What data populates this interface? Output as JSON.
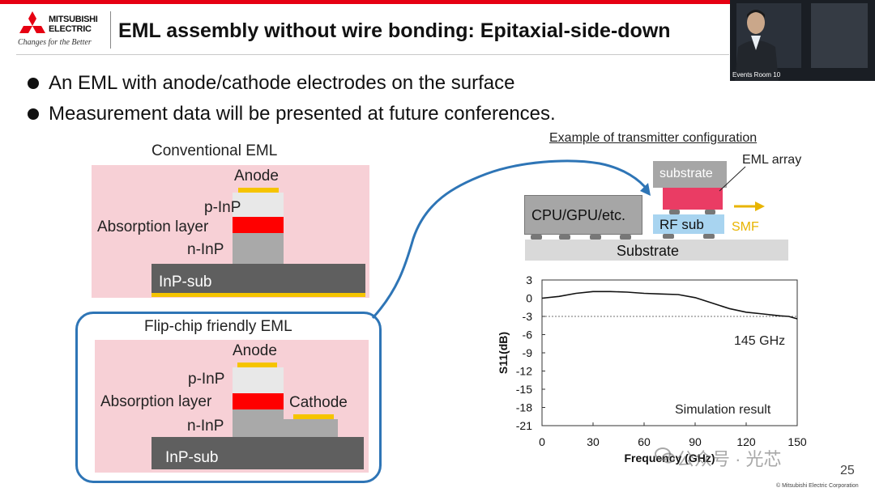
{
  "logo": {
    "brand_line1": "MITSUBISHI",
    "brand_line2": "ELECTRIC",
    "tagline": "Changes for the Better"
  },
  "title": "EML assembly without wire bonding: Epitaxial-side-down",
  "video": {
    "caption": "Events Room 10"
  },
  "bullets": [
    "An EML with anode/cathode electrodes on the surface",
    "Measurement data will be presented at future conferences."
  ],
  "conventional": {
    "heading": "Conventional EML",
    "labels": {
      "anode": "Anode",
      "p_inp": "p-InP",
      "absorption": "Absorption layer",
      "n_inp": "n-InP",
      "sub": "InP-sub"
    }
  },
  "flipchip": {
    "heading": "Flip-chip friendly EML",
    "labels": {
      "anode": "Anode",
      "p_inp": "p-InP",
      "absorption": "Absorption layer",
      "cathode": "Cathode",
      "n_inp": "n-InP",
      "sub": "InP-sub"
    }
  },
  "transmitter": {
    "heading": "Example of transmitter configuration",
    "substrate_top": "substrate",
    "eml_array": "EML array",
    "cpu": "CPU/GPU/etc.",
    "rf_sub": "RF sub",
    "smf": "SMF",
    "substrate_bottom": "Substrate"
  },
  "chart_data": {
    "type": "line",
    "title": "",
    "xlabel": "Frequency (GHz)",
    "ylabel": "S11(dB)",
    "xlim": [
      0,
      150
    ],
    "ylim": [
      -21,
      3
    ],
    "xticks": [
      0,
      30,
      60,
      90,
      120,
      150
    ],
    "yticks": [
      3,
      0,
      -3,
      -6,
      -9,
      -12,
      -15,
      -18,
      -21
    ],
    "series": [
      {
        "x": [
          0,
          10,
          20,
          30,
          40,
          50,
          60,
          70,
          80,
          90,
          100,
          110,
          120,
          130,
          140,
          145,
          150
        ],
        "y": [
          0.0,
          0.3,
          0.8,
          1.1,
          1.1,
          1.0,
          0.8,
          0.7,
          0.6,
          0.1,
          -0.8,
          -1.7,
          -2.3,
          -2.6,
          -2.9,
          -3.0,
          -3.4
        ]
      }
    ],
    "reference_line": {
      "y": -3
    },
    "annotations": [
      "145 GHz",
      "Simulation result"
    ]
  },
  "footer": {
    "page_number": "25",
    "watermark": "公众号 · 光芯",
    "copyright": "© Mitsubishi Electric Corporation"
  },
  "colors": {
    "brand_red": "#e60012",
    "pink_bg": "#f7d0d6",
    "absorption_red": "#ff0000",
    "electrode_yellow": "#f5c400",
    "layer_gray": "#a9a9a9",
    "sub_gray": "#5f5f5f",
    "frame_blue": "#2e75b6",
    "eml_pink": "#ea3c64",
    "rf_blue": "#a8d4f0",
    "smf_yellow": "#e8b400"
  }
}
